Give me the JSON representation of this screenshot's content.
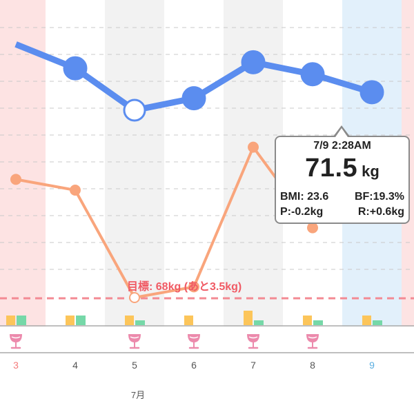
{
  "colors": {
    "weight_line": "#5b8def",
    "bodyfat_line": "#f9a57c",
    "goal_line": "#f38a93",
    "goal_text": "#f05a64",
    "sunday_bg": "#fde3e3",
    "saturday_bg": "#e2f0fb",
    "gray_bg": "#f2f2f2",
    "bar_yellow": "#fcc55a",
    "bar_green": "#76d8a8",
    "drink_icon": "#ec8aac",
    "sunday_text": "#f47a7a",
    "saturday_text": "#5aaee0"
  },
  "days": [
    {
      "label": "3",
      "bg": "sunday",
      "text": "sunday"
    },
    {
      "label": "4",
      "bg": "white",
      "text": "normal"
    },
    {
      "label": "5",
      "bg": "gray",
      "text": "normal"
    },
    {
      "label": "6",
      "bg": "white",
      "text": "normal"
    },
    {
      "label": "7",
      "bg": "gray",
      "text": "normal"
    },
    {
      "label": "8",
      "bg": "white",
      "text": "normal"
    },
    {
      "label": "9",
      "bg": "saturday",
      "text": "saturday"
    }
  ],
  "month_label": "7月",
  "goal": {
    "label": "目標: 68kg (あと3.5kg)",
    "weight": 68
  },
  "chart_data": {
    "type": "line",
    "x": [
      "3",
      "4",
      "5",
      "6",
      "7",
      "8",
      "9"
    ],
    "series": [
      {
        "key": "weight",
        "values": [
          72.3,
          71.9,
          71.2,
          71.4,
          72.0,
          71.8,
          71.5
        ],
        "hollow_index": 2
      },
      {
        "key": "body_fat",
        "values": [
          19.8,
          19.6,
          17.6,
          17.8,
          20.4,
          18.9,
          19.3
        ],
        "hollow_index": 2
      }
    ],
    "activity_bars": [
      {
        "day": "3",
        "yellow": 1,
        "green": 1
      },
      {
        "day": "4",
        "yellow": 1,
        "green": 1
      },
      {
        "day": "5",
        "yellow": 1,
        "green": 0.5
      },
      {
        "day": "6",
        "yellow": 1,
        "green": 0
      },
      {
        "day": "7",
        "yellow": 1.5,
        "green": 0.5
      },
      {
        "day": "8",
        "yellow": 1,
        "green": 0.5
      },
      {
        "day": "9",
        "yellow": 1,
        "green": 0.5
      }
    ],
    "drink_days": [
      "3",
      "5",
      "6",
      "7",
      "8"
    ]
  },
  "tooltip": {
    "time": "7/9 2:28AM",
    "weight": "71.5",
    "unit": "kg",
    "bmi": "BMI: 23.6",
    "bf": "BF:19.3%",
    "p": "P:-0.2kg",
    "r": "R:+0.6kg"
  }
}
